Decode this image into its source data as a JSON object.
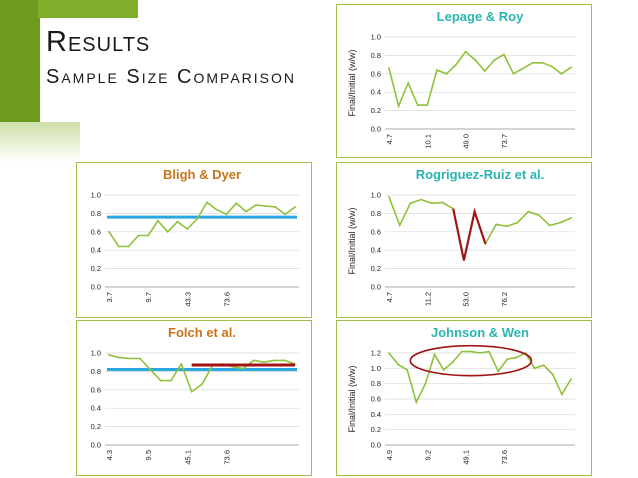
{
  "slide": {
    "title": "Results",
    "subtitle": "Sample Size Comparison",
    "colors": {
      "accent": "#6d9b1e",
      "line": "#8fc13a",
      "mean": "#2aa8df",
      "marker": "#a01414",
      "title_orange": "#c8741a",
      "title_teal": "#2bb5b0"
    }
  },
  "chart_data": [
    {
      "id": "lepage",
      "type": "line",
      "title": "Lepage & Roy",
      "title_color": "#2bb5b0",
      "ylabel": "Final/Initial (w/w)",
      "ylim": [
        0,
        1.0
      ],
      "yticks": [
        0.0,
        0.2,
        0.4,
        0.6,
        0.8,
        1.0
      ],
      "ytick_labels": [
        "0.0",
        "0.2",
        "0.4",
        "0.6",
        "0.8",
        "1.0"
      ],
      "xtick_labels": [
        "4.7",
        "10.1",
        "49.0",
        "73.7"
      ],
      "xtick_positions": [
        0,
        4,
        8,
        12
      ],
      "values": [
        0.66,
        0.25,
        0.5,
        0.26,
        0.26,
        0.64,
        0.6,
        0.7,
        0.84,
        0.75,
        0.63,
        0.75,
        0.81,
        0.6,
        0.66,
        0.72,
        0.72,
        0.68,
        0.6,
        0.67
      ]
    },
    {
      "id": "bligh",
      "type": "line",
      "title": "Bligh & Dyer",
      "title_color": "#c8741a",
      "ylabel": "Final/Initial (w/w)",
      "ylim": [
        0,
        1.0
      ],
      "yticks": [
        0.0,
        0.2,
        0.4,
        0.6,
        0.8,
        1.0
      ],
      "ytick_labels": [
        "0.0",
        "0.2",
        "0.4",
        "0.6",
        "0.8",
        "1.0"
      ],
      "xtick_labels": [
        "3.7",
        "9.7",
        "43.3",
        "73.6"
      ],
      "xtick_positions": [
        0,
        4,
        8,
        12
      ],
      "values": [
        0.6,
        0.44,
        0.44,
        0.56,
        0.56,
        0.72,
        0.6,
        0.71,
        0.63,
        0.74,
        0.92,
        0.84,
        0.79,
        0.91,
        0.82,
        0.89,
        0.88,
        0.87,
        0.79,
        0.87
      ],
      "mean_line": 0.76
    },
    {
      "id": "rodriguez",
      "type": "line",
      "title": "Rogriguez-Ruiz et al.",
      "title_color": "#2bb5b0",
      "ylabel": "Final/Initial (w/w)",
      "ylim": [
        0,
        1.0
      ],
      "yticks": [
        0.0,
        0.2,
        0.4,
        0.6,
        0.8,
        1.0
      ],
      "ytick_labels": [
        "0.0",
        "0.2",
        "0.4",
        "0.6",
        "0.8",
        "1.0"
      ],
      "xtick_labels": [
        "4.7",
        "11.2",
        "53.0",
        "76.2"
      ],
      "xtick_positions": [
        0,
        4,
        8,
        12
      ],
      "values": [
        0.98,
        0.67,
        0.91,
        0.95,
        0.91,
        0.92,
        0.85,
        0.29,
        0.82,
        0.47,
        0.68,
        0.66,
        0.7,
        0.82,
        0.78,
        0.67,
        0.7,
        0.75
      ],
      "highlight": {
        "from": 6,
        "to": 9
      }
    },
    {
      "id": "folch",
      "type": "line",
      "title": "Folch et al.",
      "title_color": "#c8741a",
      "ylabel": "Final/Initial (w/w)",
      "ylim": [
        0,
        1.0
      ],
      "yticks": [
        0.0,
        0.2,
        0.4,
        0.6,
        0.8,
        1.0
      ],
      "ytick_labels": [
        "0.0",
        "0.2",
        "0.4",
        "0.6",
        "0.8",
        "1.0"
      ],
      "xtick_labels": [
        "4.3",
        "9.5",
        "45.1",
        "73.6"
      ],
      "xtick_positions": [
        0,
        4,
        8,
        12
      ],
      "values": [
        0.98,
        0.95,
        0.94,
        0.94,
        0.82,
        0.7,
        0.7,
        0.88,
        0.58,
        0.66,
        0.86,
        0.88,
        0.85,
        0.83,
        0.92,
        0.9,
        0.92,
        0.92,
        0.88
      ],
      "mean_line": 0.82,
      "ref_line": {
        "value": 0.87,
        "from": 8,
        "to": 18
      }
    },
    {
      "id": "johnson",
      "type": "line",
      "title": "Johnson & Wen",
      "title_color": "#2bb5b0",
      "ylabel": "Final/Initial (w/w)",
      "ylim": [
        0,
        1.2
      ],
      "yticks": [
        0.0,
        0.2,
        0.4,
        0.6,
        0.8,
        1.0,
        1.2
      ],
      "ytick_labels": [
        "0.0",
        "0.2",
        "0.4",
        "0.6",
        "0.8",
        "1.0",
        "1.2"
      ],
      "xtick_labels": [
        "4.9",
        "9.2",
        "49.1",
        "73.6"
      ],
      "xtick_positions": [
        0,
        4,
        8,
        12
      ],
      "values": [
        1.2,
        1.05,
        0.98,
        0.56,
        0.8,
        1.18,
        0.98,
        1.08,
        1.22,
        1.22,
        1.2,
        1.22,
        0.96,
        1.12,
        1.14,
        1.2,
        1.0,
        1.04,
        0.92,
        0.66,
        0.86
      ],
      "ellipse": {
        "from": 3,
        "to": 15,
        "center_value": 1.1
      }
    }
  ]
}
